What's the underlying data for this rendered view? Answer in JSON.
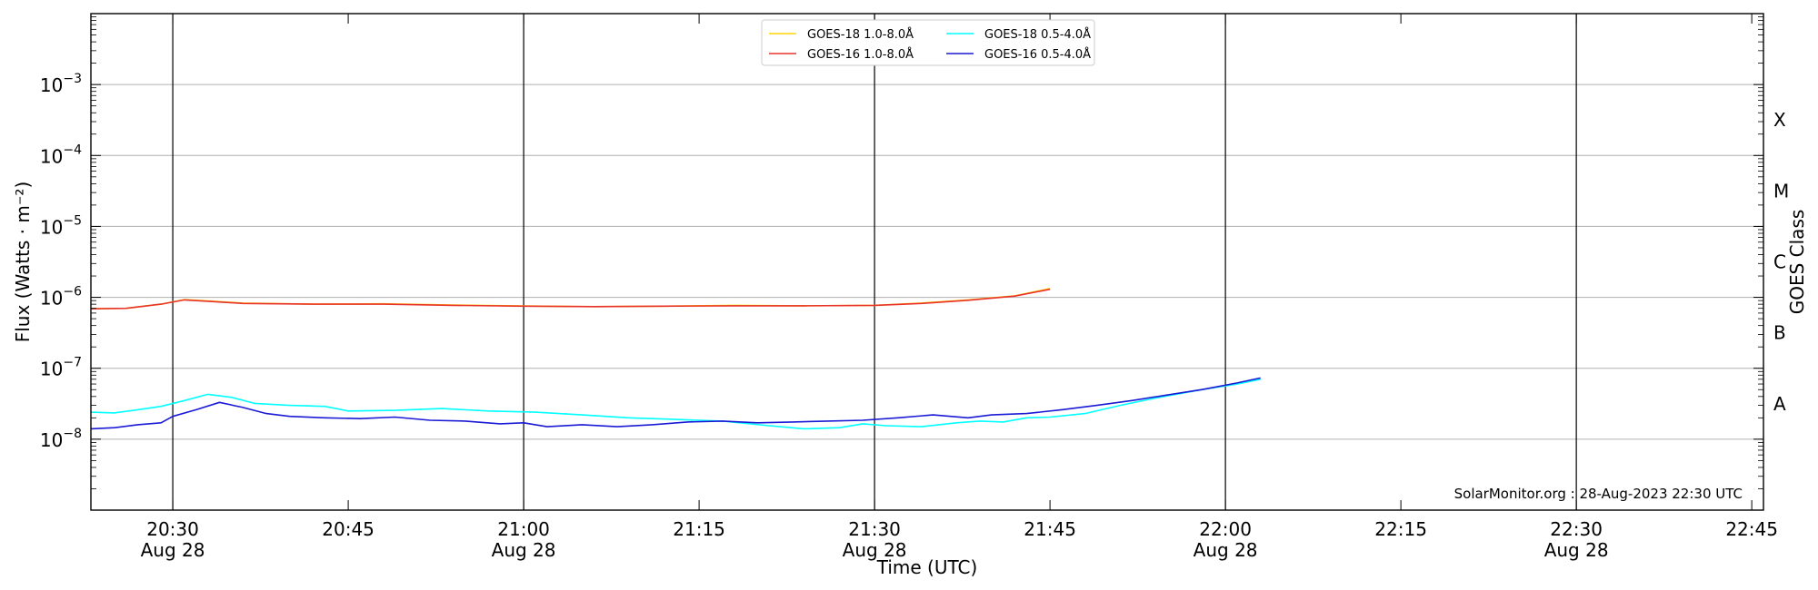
{
  "chart_data": {
    "type": "line",
    "xlabel": "Time (UTC)",
    "ylabel": "Flux (Watts · m⁻²)",
    "ylabel_right": "GOES Class",
    "x_unit": "UTC time",
    "xlim": [
      "20:23",
      "22:46"
    ],
    "ylim": [
      1e-09,
      0.01
    ],
    "y_scale": "log",
    "grid": "horizontal",
    "legend_position": "top-center",
    "credit": "SolarMonitor.org : 28-Aug-2023 22:30 UTC",
    "x_ticks": [
      {
        "time": "20:30",
        "label": "20:30",
        "date": "Aug 28"
      },
      {
        "time": "20:45",
        "label": "20:45",
        "date": ""
      },
      {
        "time": "21:00",
        "label": "21:00",
        "date": "Aug 28"
      },
      {
        "time": "21:15",
        "label": "21:15",
        "date": ""
      },
      {
        "time": "21:30",
        "label": "21:30",
        "date": "Aug 28"
      },
      {
        "time": "21:45",
        "label": "21:45",
        "date": ""
      },
      {
        "time": "22:00",
        "label": "22:00",
        "date": "Aug 28"
      },
      {
        "time": "22:15",
        "label": "22:15",
        "date": ""
      },
      {
        "time": "22:30",
        "label": "22:30",
        "date": "Aug 28"
      },
      {
        "time": "22:45",
        "label": "22:45",
        "date": ""
      }
    ],
    "y_ticks": [
      {
        "exp": -8,
        "label": "10",
        "sup": "−8"
      },
      {
        "exp": -7,
        "label": "10",
        "sup": "−7"
      },
      {
        "exp": -6,
        "label": "10",
        "sup": "−6"
      },
      {
        "exp": -5,
        "label": "10",
        "sup": "−5"
      },
      {
        "exp": -4,
        "label": "10",
        "sup": "−4"
      },
      {
        "exp": -3,
        "label": "10",
        "sup": "−3"
      }
    ],
    "goes_classes": [
      {
        "label": "A",
        "exp": -7.5
      },
      {
        "label": "B",
        "exp": -6.5
      },
      {
        "label": "C",
        "exp": -5.5
      },
      {
        "label": "M",
        "exp": -4.5
      },
      {
        "label": "X",
        "exp": -3.5
      }
    ],
    "series": [
      {
        "name": "GOES-18 1.0-8.0Å",
        "color": "#ffd500",
        "points": [
          [
            "20:23",
            6.9e-07
          ],
          [
            "20:26",
            7e-07
          ],
          [
            "20:29",
            8e-07
          ],
          [
            "20:31",
            9.3e-07
          ],
          [
            "20:33",
            8.9e-07
          ],
          [
            "20:36",
            8.3e-07
          ],
          [
            "20:42",
            8e-07
          ],
          [
            "20:48",
            8.1e-07
          ],
          [
            "20:54",
            7.8e-07
          ],
          [
            "21:00",
            7.55e-07
          ],
          [
            "21:06",
            7.4e-07
          ],
          [
            "21:12",
            7.5e-07
          ],
          [
            "21:18",
            7.7e-07
          ],
          [
            "21:24",
            7.6e-07
          ],
          [
            "21:30",
            7.7e-07
          ],
          [
            "21:34",
            8.3e-07
          ],
          [
            "21:38",
            9.2e-07
          ],
          [
            "21:42",
            1.05e-06
          ],
          [
            "21:45",
            1.33e-06
          ]
        ]
      },
      {
        "name": "GOES-18 0.5-4.0Å",
        "color": "#00ffff",
        "points": [
          [
            "20:23",
            2.4e-08
          ],
          [
            "20:25",
            2.35e-08
          ],
          [
            "20:27",
            2.6e-08
          ],
          [
            "20:29",
            2.9e-08
          ],
          [
            "20:31",
            3.5e-08
          ],
          [
            "20:33",
            4.3e-08
          ],
          [
            "20:35",
            3.9e-08
          ],
          [
            "20:37",
            3.2e-08
          ],
          [
            "20:40",
            3e-08
          ],
          [
            "20:43",
            2.9e-08
          ],
          [
            "20:45",
            2.5e-08
          ],
          [
            "20:49",
            2.55e-08
          ],
          [
            "20:53",
            2.7e-08
          ],
          [
            "20:57",
            2.5e-08
          ],
          [
            "21:01",
            2.4e-08
          ],
          [
            "21:05",
            2.2e-08
          ],
          [
            "21:09",
            2e-08
          ],
          [
            "21:13",
            1.9e-08
          ],
          [
            "21:17",
            1.8e-08
          ],
          [
            "21:21",
            1.55e-08
          ],
          [
            "21:24",
            1.4e-08
          ],
          [
            "21:27",
            1.45e-08
          ],
          [
            "21:29",
            1.65e-08
          ],
          [
            "21:31",
            1.55e-08
          ],
          [
            "21:34",
            1.5e-08
          ],
          [
            "21:37",
            1.7e-08
          ],
          [
            "21:39",
            1.8e-08
          ],
          [
            "21:41",
            1.75e-08
          ],
          [
            "21:43",
            2e-08
          ],
          [
            "21:45",
            2.05e-08
          ],
          [
            "21:48",
            2.3e-08
          ],
          [
            "21:51",
            3e-08
          ],
          [
            "21:54",
            3.8e-08
          ],
          [
            "21:58",
            5e-08
          ],
          [
            "22:01",
            6e-08
          ],
          [
            "22:03",
            7e-08
          ]
        ]
      },
      {
        "name": "GOES-16 1.0-8.0Å",
        "color": "#e8332c",
        "points": [
          [
            "20:23",
            6.9e-07
          ],
          [
            "20:26",
            7e-07
          ],
          [
            "20:29",
            8e-07
          ],
          [
            "20:31",
            9.2e-07
          ],
          [
            "20:33",
            8.8e-07
          ],
          [
            "20:36",
            8.2e-07
          ],
          [
            "20:42",
            8e-07
          ],
          [
            "20:48",
            8e-07
          ],
          [
            "20:54",
            7.7e-07
          ],
          [
            "21:00",
            7.5e-07
          ],
          [
            "21:06",
            7.4e-07
          ],
          [
            "21:12",
            7.5e-07
          ],
          [
            "21:18",
            7.6e-07
          ],
          [
            "21:24",
            7.6e-07
          ],
          [
            "21:30",
            7.7e-07
          ],
          [
            "21:34",
            8.2e-07
          ],
          [
            "21:38",
            9.1e-07
          ],
          [
            "21:42",
            1.04e-06
          ],
          [
            "21:45",
            1.3e-06
          ]
        ]
      },
      {
        "name": "GOES-16 0.5-4.0Å",
        "color": "#1a1ad6",
        "points": [
          [
            "20:23",
            1.4e-08
          ],
          [
            "20:25",
            1.45e-08
          ],
          [
            "20:27",
            1.6e-08
          ],
          [
            "20:29",
            1.7e-08
          ],
          [
            "20:30",
            2.1e-08
          ],
          [
            "20:32",
            2.6e-08
          ],
          [
            "20:34",
            3.3e-08
          ],
          [
            "20:36",
            2.8e-08
          ],
          [
            "20:38",
            2.3e-08
          ],
          [
            "20:40",
            2.1e-08
          ],
          [
            "20:43",
            2e-08
          ],
          [
            "20:46",
            1.95e-08
          ],
          [
            "20:49",
            2.05e-08
          ],
          [
            "20:52",
            1.85e-08
          ],
          [
            "20:55",
            1.8e-08
          ],
          [
            "20:58",
            1.65e-08
          ],
          [
            "21:00",
            1.7e-08
          ],
          [
            "21:02",
            1.5e-08
          ],
          [
            "21:05",
            1.6e-08
          ],
          [
            "21:08",
            1.5e-08
          ],
          [
            "21:11",
            1.6e-08
          ],
          [
            "21:14",
            1.75e-08
          ],
          [
            "21:17",
            1.8e-08
          ],
          [
            "21:20",
            1.7e-08
          ],
          [
            "21:23",
            1.75e-08
          ],
          [
            "21:26",
            1.8e-08
          ],
          [
            "21:29",
            1.85e-08
          ],
          [
            "21:32",
            2e-08
          ],
          [
            "21:35",
            2.2e-08
          ],
          [
            "21:38",
            2e-08
          ],
          [
            "21:40",
            2.2e-08
          ],
          [
            "21:43",
            2.3e-08
          ],
          [
            "21:46",
            2.6e-08
          ],
          [
            "21:49",
            3e-08
          ],
          [
            "21:52",
            3.5e-08
          ],
          [
            "21:55",
            4.2e-08
          ],
          [
            "21:58",
            5e-08
          ],
          [
            "22:01",
            6.2e-08
          ],
          [
            "22:03",
            7.3e-08
          ]
        ]
      }
    ]
  }
}
